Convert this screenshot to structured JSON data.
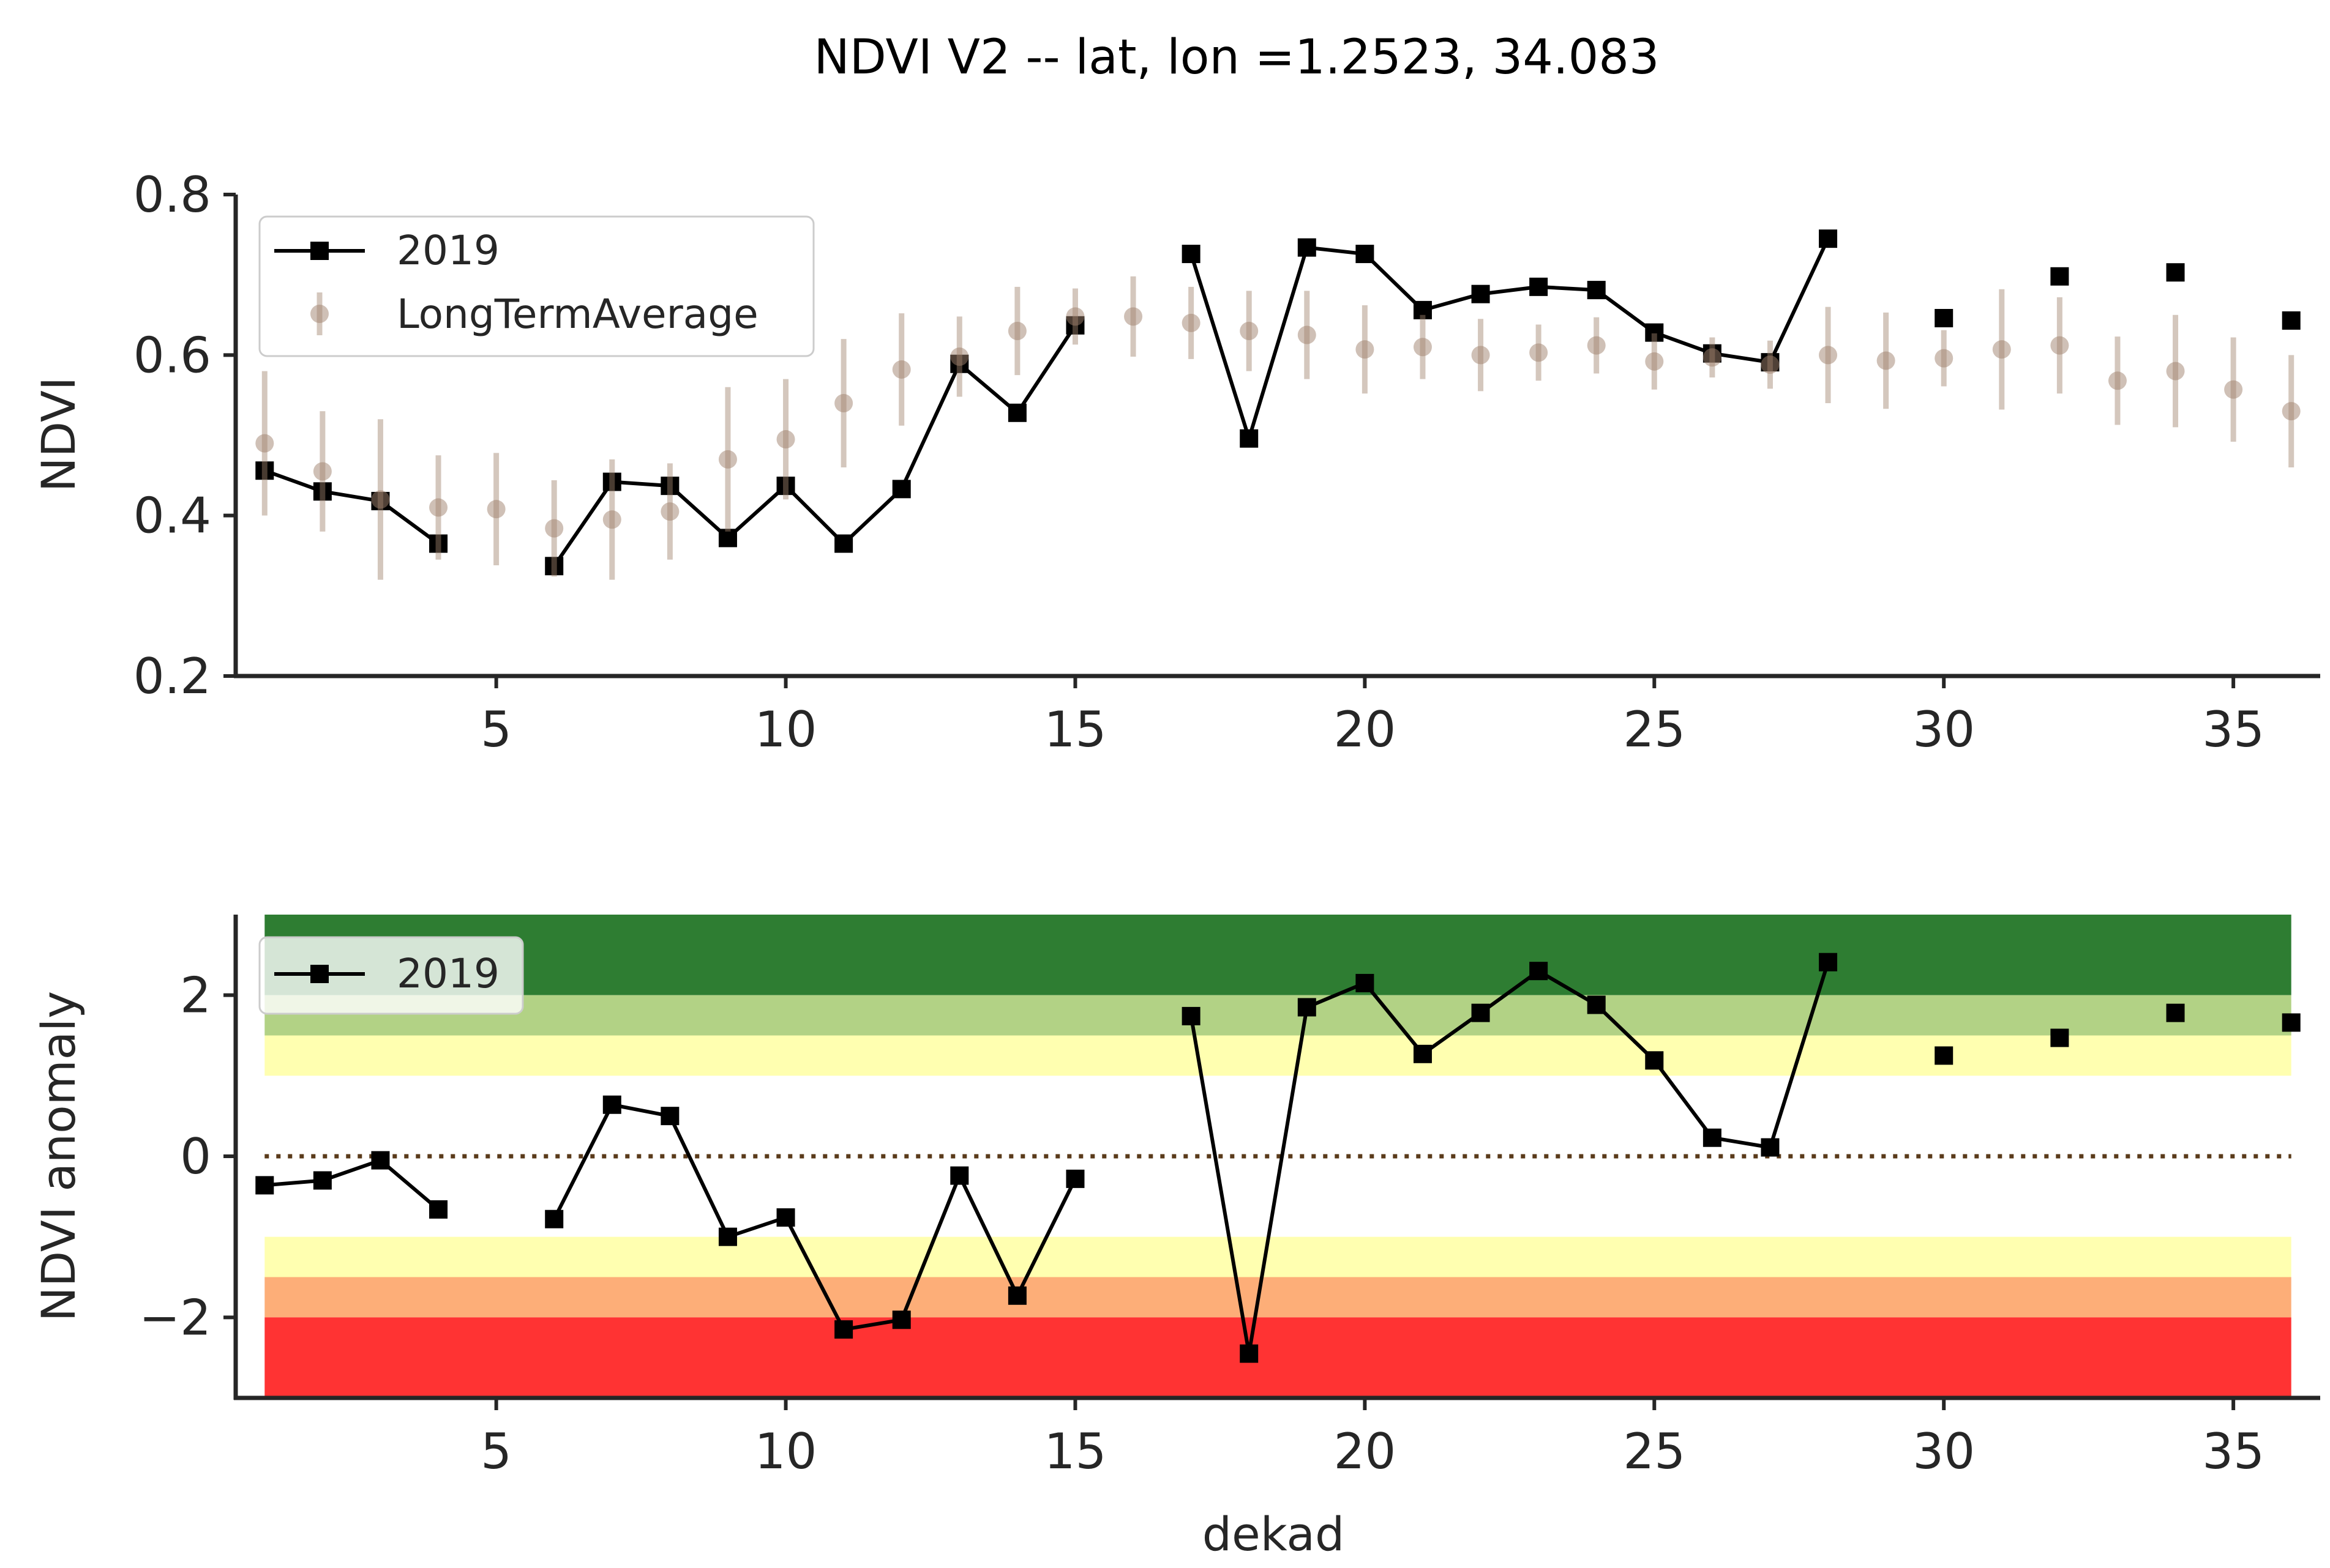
{
  "chart_data": [
    {
      "type": "line",
      "title": "NDVI V2 -- lat, lon =1.2523, 34.083",
      "ylabel": "NDVI",
      "xlabel": "",
      "xlim": [
        0.5,
        36.5
      ],
      "ylim": [
        0.2,
        0.8
      ],
      "xticks": [
        5,
        10,
        15,
        20,
        25,
        30,
        35
      ],
      "yticks": [
        0.2,
        0.4,
        0.6,
        0.8
      ],
      "ytick_labels": [
        "0.2",
        "0.4",
        "0.6",
        "0.8"
      ],
      "legend": {
        "placement": "upper-left",
        "entries": [
          "2019",
          "LongTermAverage"
        ]
      },
      "series": [
        {
          "name": "2019",
          "style": "line-square",
          "color": "#000000",
          "x": [
            1,
            2,
            3,
            4,
            5,
            6,
            7,
            8,
            9,
            10,
            11,
            12,
            13,
            14,
            15,
            16,
            17,
            18,
            19,
            20,
            21,
            22,
            23,
            24,
            25,
            26,
            27,
            28,
            29,
            30,
            31,
            32,
            33,
            34,
            35,
            36
          ],
          "values": [
            0.456,
            0.43,
            0.418,
            0.365,
            null,
            0.337,
            0.442,
            0.437,
            0.372,
            0.437,
            0.365,
            0.433,
            0.589,
            0.528,
            0.637,
            null,
            0.726,
            0.496,
            0.734,
            0.726,
            0.656,
            0.676,
            0.685,
            0.681,
            0.628,
            0.602,
            0.591,
            0.745,
            null,
            0.646,
            null,
            0.698,
            null,
            0.703,
            null,
            0.643
          ]
        },
        {
          "name": "LongTermAverage",
          "style": "errorbar-circle",
          "color": "#a0826d",
          "x": [
            1,
            2,
            3,
            4,
            5,
            6,
            7,
            8,
            9,
            10,
            11,
            12,
            13,
            14,
            15,
            16,
            17,
            18,
            19,
            20,
            21,
            22,
            23,
            24,
            25,
            26,
            27,
            28,
            29,
            30,
            31,
            32,
            33,
            34,
            35,
            36
          ],
          "values": [
            0.49,
            0.455,
            0.42,
            0.41,
            0.408,
            0.384,
            0.395,
            0.405,
            0.47,
            0.495,
            0.54,
            0.582,
            0.598,
            0.63,
            0.648,
            0.648,
            0.64,
            0.63,
            0.625,
            0.607,
            0.61,
            0.6,
            0.603,
            0.612,
            0.592,
            0.597,
            0.588,
            0.6,
            0.593,
            0.596,
            0.607,
            0.612,
            0.568,
            0.58,
            0.557,
            0.53
          ],
          "err": [
            0.09,
            0.075,
            0.1,
            0.065,
            0.07,
            0.06,
            0.075,
            0.06,
            0.09,
            0.075,
            0.08,
            0.07,
            0.05,
            0.055,
            0.035,
            0.05,
            0.045,
            0.05,
            0.055,
            0.055,
            0.04,
            0.045,
            0.035,
            0.035,
            0.035,
            0.025,
            0.03,
            0.06,
            0.06,
            0.035,
            0.075,
            0.06,
            0.055,
            0.07,
            0.065,
            0.07
          ]
        }
      ]
    },
    {
      "type": "line",
      "title": "",
      "ylabel": "NDVI anomaly",
      "xlabel": "dekad",
      "xlim": [
        0.5,
        36.5
      ],
      "ylim": [
        -3,
        3
      ],
      "xticks": [
        5,
        10,
        15,
        20,
        25,
        30,
        35
      ],
      "yticks": [
        -2,
        0,
        2
      ],
      "ytick_labels": [
        "−2",
        "0",
        "2"
      ],
      "legend": {
        "placement": "upper-left",
        "entries": [
          "2019"
        ]
      },
      "zero_line": {
        "y": 0,
        "style": "dotted",
        "color": "#5a3a1a"
      },
      "bands": [
        {
          "from": 2,
          "to": 3,
          "color": "#2e7d32"
        },
        {
          "from": 1.5,
          "to": 2,
          "color": "#b2d285"
        },
        {
          "from": 1,
          "to": 1.5,
          "color": "#ffffb0"
        },
        {
          "from": -1.5,
          "to": -1,
          "color": "#ffffb0"
        },
        {
          "from": -2,
          "to": -1.5,
          "color": "#fdae78"
        },
        {
          "from": -3,
          "to": -2,
          "color": "#ff3333"
        }
      ],
      "band_x": [
        1,
        36
      ],
      "series": [
        {
          "name": "2019",
          "style": "line-square",
          "color": "#000000",
          "x": [
            1,
            2,
            3,
            4,
            5,
            6,
            7,
            8,
            9,
            10,
            11,
            12,
            13,
            14,
            15,
            16,
            17,
            18,
            19,
            20,
            21,
            22,
            23,
            24,
            25,
            26,
            27,
            28,
            29,
            30,
            31,
            32,
            33,
            34,
            35,
            36
          ],
          "values": [
            -0.36,
            -0.3,
            -0.05,
            -0.66,
            null,
            -0.78,
            0.64,
            0.5,
            -1.0,
            -0.76,
            -2.15,
            -2.03,
            -0.24,
            -1.73,
            -0.28,
            null,
            1.74,
            -2.45,
            1.85,
            2.15,
            1.27,
            1.78,
            2.3,
            1.88,
            1.19,
            0.23,
            0.11,
            2.41,
            null,
            1.25,
            null,
            1.47,
            null,
            1.78,
            null,
            1.66
          ]
        }
      ]
    }
  ]
}
